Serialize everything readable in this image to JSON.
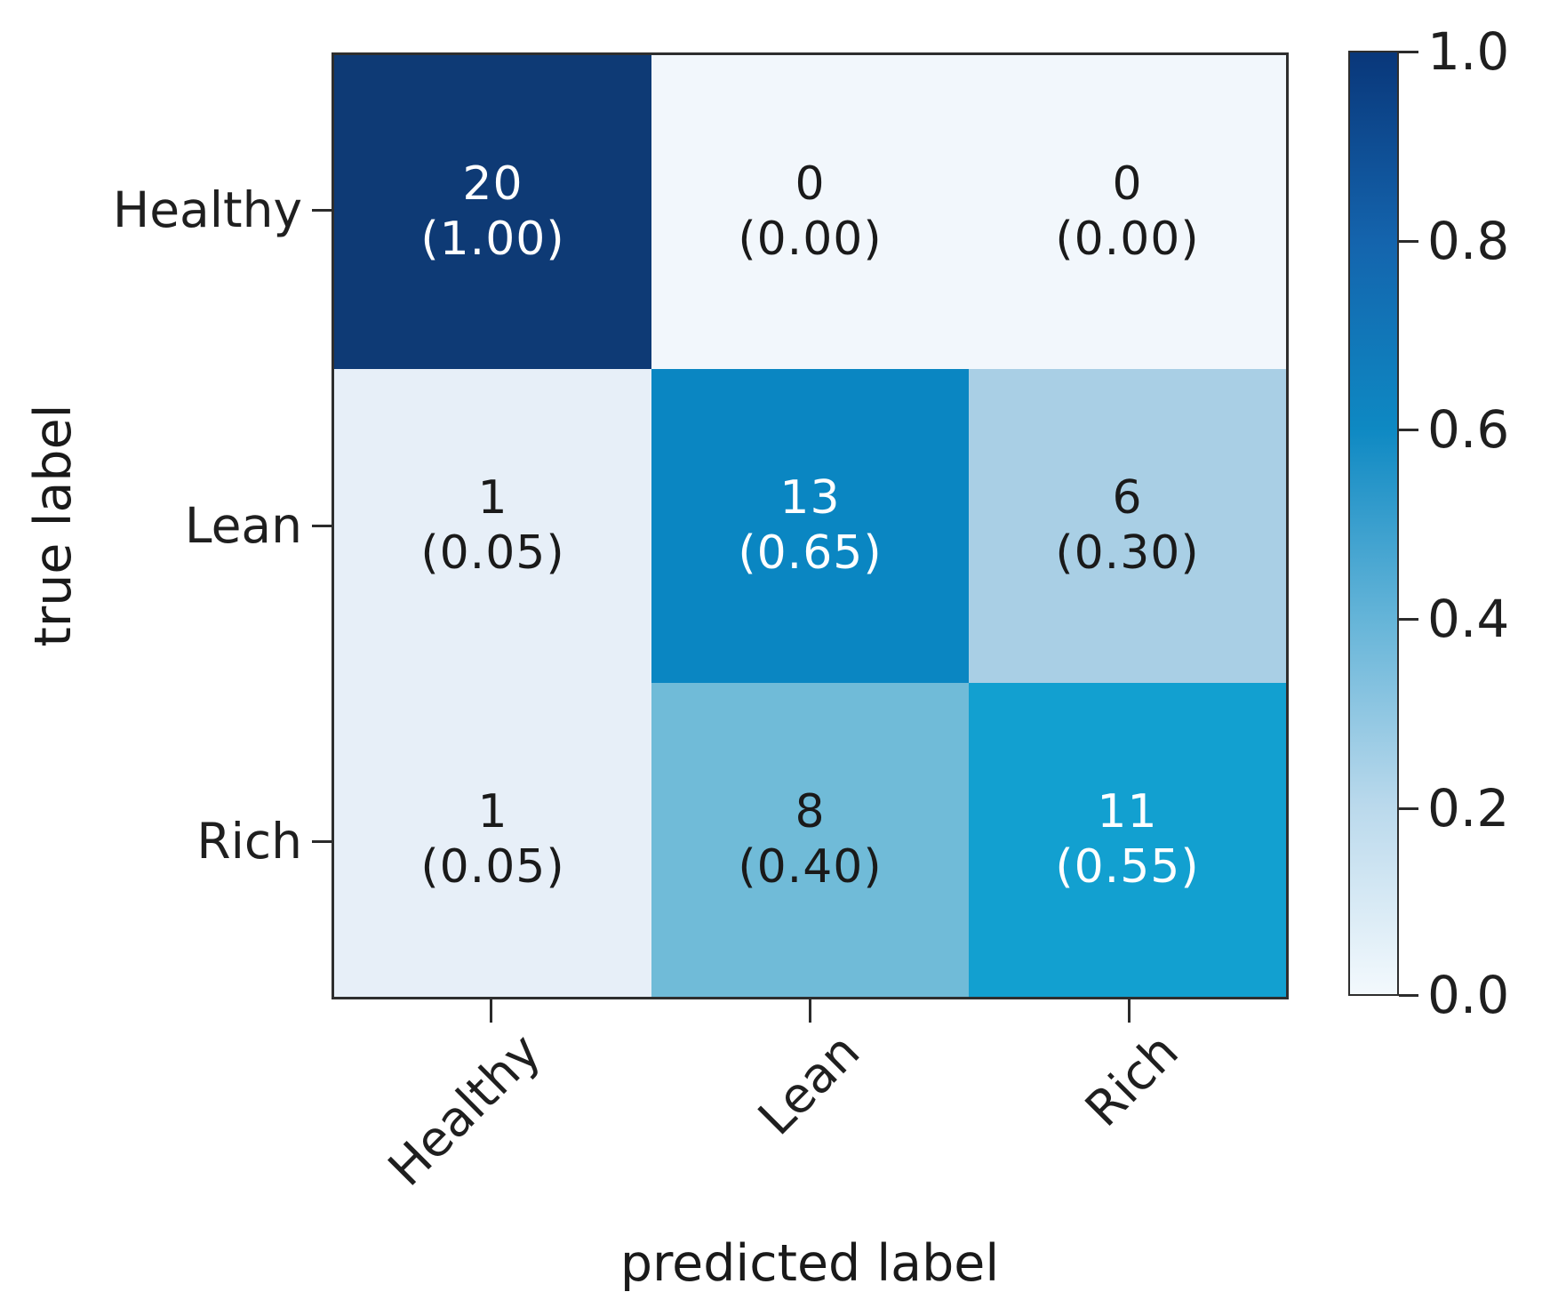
{
  "figure": {
    "xlabel": "predicted label",
    "ylabel": "true label"
  },
  "chart_data": {
    "type": "heatmap",
    "subtype": "confusion-matrix",
    "title": "",
    "xlabel": "predicted label",
    "ylabel": "true label",
    "x_categories": [
      "Healthy",
      "Lean",
      "Rich"
    ],
    "y_categories": [
      "Healthy",
      "Lean",
      "Rich"
    ],
    "counts": [
      [
        20,
        0,
        0
      ],
      [
        1,
        13,
        6
      ],
      [
        1,
        8,
        11
      ]
    ],
    "fractions": [
      [
        1.0,
        0.0,
        0.0
      ],
      [
        0.05,
        0.65,
        0.3
      ],
      [
        0.05,
        0.4,
        0.55
      ]
    ],
    "cells": [
      {
        "row": "Healthy",
        "col": "Healthy",
        "count": "20",
        "frac_label": "(1.00)",
        "value": 1.0,
        "color": "#0e3a75",
        "text_color": "#ffffff"
      },
      {
        "row": "Healthy",
        "col": "Lean",
        "count": "0",
        "frac_label": "(0.00)",
        "value": 0.0,
        "color": "#f2f7fc",
        "text_color": "#1a1a1a"
      },
      {
        "row": "Healthy",
        "col": "Rich",
        "count": "0",
        "frac_label": "(0.00)",
        "value": 0.0,
        "color": "#f2f7fc",
        "text_color": "#1a1a1a"
      },
      {
        "row": "Lean",
        "col": "Healthy",
        "count": "1",
        "frac_label": "(0.05)",
        "value": 0.05,
        "color": "#e7eff8",
        "text_color": "#1a1a1a"
      },
      {
        "row": "Lean",
        "col": "Lean",
        "count": "13",
        "frac_label": "(0.65)",
        "value": 0.65,
        "color": "#0a86c2",
        "text_color": "#ffffff"
      },
      {
        "row": "Lean",
        "col": "Rich",
        "count": "6",
        "frac_label": "(0.30)",
        "value": 0.3,
        "color": "#a9cfe5",
        "text_color": "#1a1a1a"
      },
      {
        "row": "Rich",
        "col": "Healthy",
        "count": "1",
        "frac_label": "(0.05)",
        "value": 0.05,
        "color": "#e7eff8",
        "text_color": "#1a1a1a"
      },
      {
        "row": "Rich",
        "col": "Lean",
        "count": "8",
        "frac_label": "(0.40)",
        "value": 0.4,
        "color": "#70bbd8",
        "text_color": "#1a1a1a"
      },
      {
        "row": "Rich",
        "col": "Rich",
        "count": "11",
        "frac_label": "(0.55)",
        "value": 0.55,
        "color": "#12a0d0",
        "text_color": "#ffffff"
      }
    ],
    "colormap": "Blues",
    "colorbar": {
      "ticks": [
        "1.0",
        "0.8",
        "0.6",
        "0.4",
        "0.2",
        "0.0"
      ],
      "range": [
        0.0,
        1.0
      ],
      "gradient_stops": [
        {
          "pos": 0,
          "color": "#09377a"
        },
        {
          "pos": 20,
          "color": "#1464ad"
        },
        {
          "pos": 40,
          "color": "#0e89c3"
        },
        {
          "pos": 60,
          "color": "#64b4d8"
        },
        {
          "pos": 80,
          "color": "#bad9ec"
        },
        {
          "pos": 100,
          "color": "#f3f9fd"
        }
      ]
    },
    "grid": false,
    "legend": "colorbar-right"
  }
}
